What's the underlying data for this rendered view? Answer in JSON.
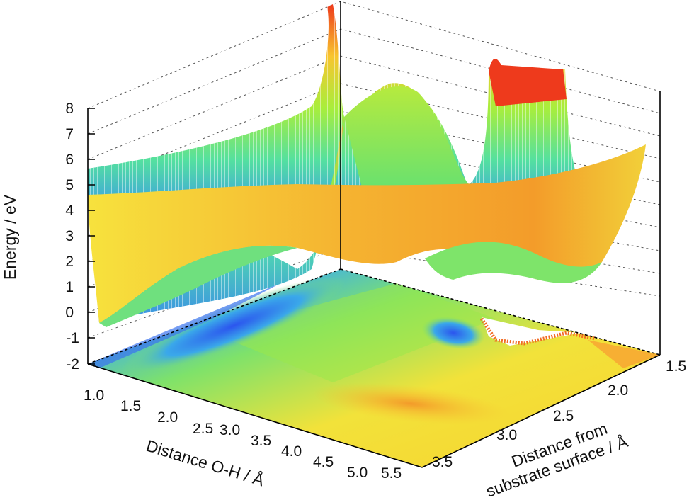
{
  "chart_data": {
    "type": "surface3d",
    "title": "",
    "xlabel": "Distance O-H / Å",
    "ylabel": "Distance from substrate surface / Å",
    "zlabel": "Energy / eV",
    "x_ticks": [
      "1.0",
      "1.5",
      "2.0",
      "2.5",
      "3.0",
      "3.5",
      "4.0",
      "4.5",
      "5.0",
      "5.5"
    ],
    "y_ticks": [
      "1.5",
      "2.0",
      "2.5",
      "3.0",
      "3.5"
    ],
    "z_ticks": [
      "8",
      "7",
      "6",
      "5",
      "4",
      "3",
      "2",
      "1",
      "0",
      "-1",
      "-2"
    ],
    "xlim": [
      1.0,
      5.5
    ],
    "ylim": [
      1.5,
      3.8
    ],
    "zlim": [
      -2,
      8
    ],
    "colormap": "jet (blue = low energy, red = high energy)",
    "grid": true,
    "contour_projection": "base plane",
    "series": [
      {
        "description": "upper surface (wireframe, rises steeply toward red at small O-H distance and far substrate edge)"
      },
      {
        "description": "lower surface (smooth orange/yellow sheet near 3–4 eV, minimum ~0 eV at small O-H distance)"
      }
    ]
  }
}
